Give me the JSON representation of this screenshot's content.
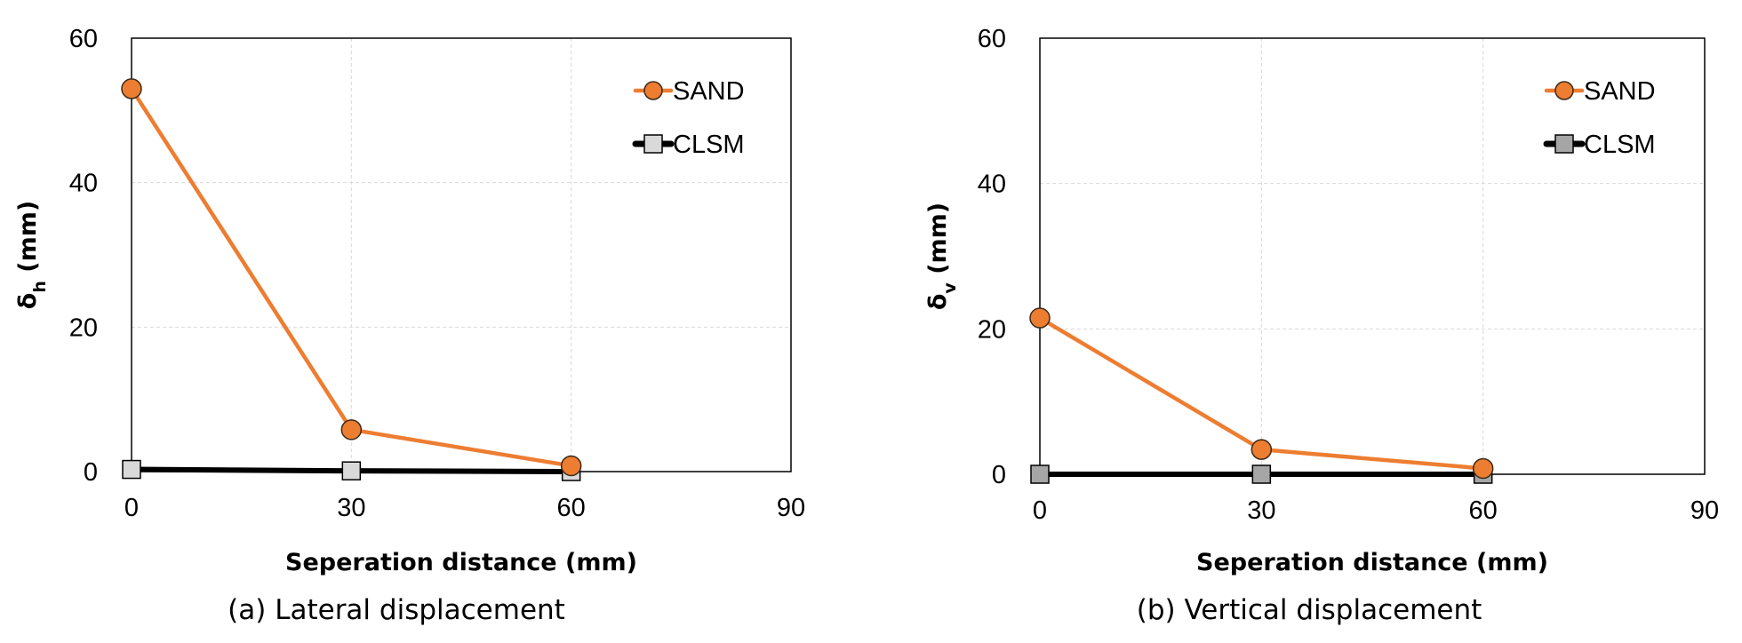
{
  "chart_data": [
    {
      "type": "line",
      "caption": "(a) Lateral displacement",
      "xlabel": "Seperation distance (mm)",
      "ylabel_main": "δ",
      "ylabel_sub": "h",
      "ylabel_unit": " (mm)",
      "xlim": [
        0,
        90
      ],
      "ylim": [
        0,
        60
      ],
      "xticks": [
        "0",
        "30",
        "60",
        "90"
      ],
      "yticks": [
        "0",
        "20",
        "40",
        "60"
      ],
      "grid": true,
      "legend_position": "top-right",
      "x": [
        0,
        30,
        60
      ],
      "series": [
        {
          "name": "SAND",
          "values": [
            53,
            5.8,
            0.8
          ],
          "color": "#ED7D31",
          "marker": "circle",
          "marker_fill": "#ED7D31"
        },
        {
          "name": "CLSM",
          "values": [
            0.3,
            0.1,
            0.0
          ],
          "color": "#000000",
          "marker": "square",
          "marker_fill": "#D9D9D9"
        }
      ]
    },
    {
      "type": "line",
      "caption": "(b) Vertical displacement",
      "xlabel": "Seperation distance (mm)",
      "ylabel_main": "δ",
      "ylabel_sub": "v",
      "ylabel_unit": " (mm)",
      "xlim": [
        0,
        90
      ],
      "ylim": [
        0,
        60
      ],
      "xticks": [
        "0",
        "30",
        "60",
        "90"
      ],
      "yticks": [
        "0",
        "20",
        "40",
        "60"
      ],
      "grid": true,
      "legend_position": "top-right",
      "x": [
        0,
        30,
        60
      ],
      "series": [
        {
          "name": "SAND",
          "values": [
            21.5,
            3.4,
            0.8
          ],
          "color": "#ED7D31",
          "marker": "circle",
          "marker_fill": "#ED7D31"
        },
        {
          "name": "CLSM",
          "values": [
            0.0,
            0.0,
            0.0
          ],
          "color": "#000000",
          "marker": "square",
          "marker_fill": "#A6A6A6"
        }
      ]
    }
  ]
}
